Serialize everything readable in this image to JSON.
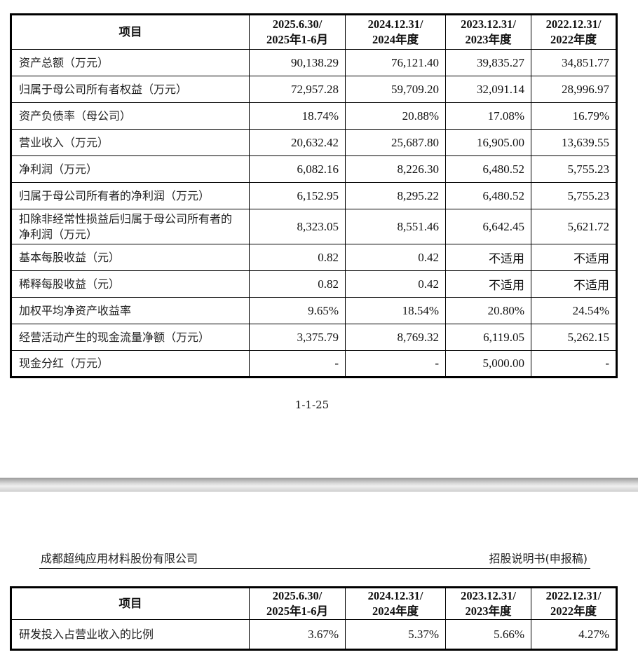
{
  "table1": {
    "headers": [
      "项目",
      "2025.6.30/\n2025年1-6月",
      "2024.12.31/\n2024年度",
      "2023.12.31/\n2023年度",
      "2022.12.31/\n2022年度"
    ],
    "rows": [
      {
        "label": "资产总额（万元）",
        "values": [
          "90,138.29",
          "76,121.40",
          "39,835.27",
          "34,851.77"
        ]
      },
      {
        "label": "归属于母公司所有者权益（万元）",
        "values": [
          "72,957.28",
          "59,709.20",
          "32,091.14",
          "28,996.97"
        ]
      },
      {
        "label": "资产负债率（母公司）",
        "values": [
          "18.74%",
          "20.88%",
          "17.08%",
          "16.79%"
        ]
      },
      {
        "label": "营业收入（万元）",
        "values": [
          "20,632.42",
          "25,687.80",
          "16,905.00",
          "13,639.55"
        ]
      },
      {
        "label": "净利润（万元）",
        "values": [
          "6,082.16",
          "8,226.30",
          "6,480.52",
          "5,755.23"
        ]
      },
      {
        "label": "归属于母公司所有者的净利润（万元）",
        "values": [
          "6,152.95",
          "8,295.22",
          "6,480.52",
          "5,755.23"
        ]
      },
      {
        "label": "扣除非经常性损益后归属于母公司所有者的净利润（万元）",
        "values": [
          "8,323.05",
          "8,551.46",
          "6,642.45",
          "5,621.72"
        ]
      },
      {
        "label": "基本每股收益（元）",
        "values": [
          "0.82",
          "0.42",
          "不适用",
          "不适用"
        ]
      },
      {
        "label": "稀释每股收益（元）",
        "values": [
          "0.82",
          "0.42",
          "不适用",
          "不适用"
        ]
      },
      {
        "label": "加权平均净资产收益率",
        "values": [
          "9.65%",
          "18.54%",
          "20.80%",
          "24.54%"
        ]
      },
      {
        "label": "经营活动产生的现金流量净额（万元）",
        "values": [
          "3,375.79",
          "8,769.32",
          "6,119.05",
          "5,262.15"
        ]
      },
      {
        "label": "现金分红（万元）",
        "values": [
          "-",
          "-",
          "5,000.00",
          "-"
        ]
      }
    ]
  },
  "page_number": "1-1-25",
  "doc_header": {
    "company": "成都超纯应用材料股份有限公司",
    "doc_type": "招股说明书(申报稿)"
  },
  "table2": {
    "headers": [
      "项目",
      "2025.6.30/\n2025年1-6月",
      "2024.12.31/\n2024年度",
      "2023.12.31/\n2023年度",
      "2022.12.31/\n2022年度"
    ],
    "rows": [
      {
        "label": "研发投入占营业收入的比例",
        "values": [
          "3.67%",
          "5.37%",
          "5.66%",
          "4.27%"
        ]
      }
    ]
  }
}
